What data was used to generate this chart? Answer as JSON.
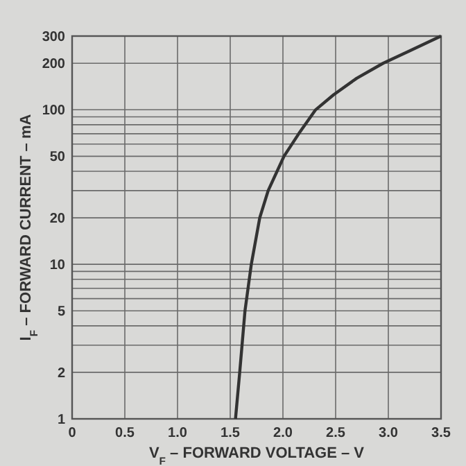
{
  "chart_data": {
    "type": "line",
    "xlabel": "V$_{F}$ – FORWARD VOLTAGE – V",
    "ylabel": "I$_{F}$ – FORWARD CURRENT – mA",
    "log": "y",
    "grid": true,
    "line_style": "solid",
    "series": [
      {
        "color": "#333333",
        "x": [
          1.55,
          1.59,
          1.64,
          1.7,
          1.78,
          1.86,
          2.01,
          2.15,
          2.31,
          2.48,
          2.7,
          2.95,
          3.2,
          3.5
        ],
        "values": [
          1,
          2,
          5,
          10,
          20,
          30,
          50,
          70,
          100,
          125,
          160,
          200,
          240,
          300
        ]
      }
    ],
    "xlim": [
      0,
      3.5
    ],
    "xticks": [
      0,
      0.5,
      {
        "value": 1,
        "label": "1.0"
      },
      1.5,
      {
        "value": 2,
        "label": "2.0"
      },
      2.5,
      {
        "value": 3,
        "label": "3.0"
      },
      3.5
    ],
    "ylim": [
      1,
      300
    ],
    "yticks": [
      1,
      2,
      {
        "value": 3,
        "label": null
      },
      {
        "value": 4,
        "label": null
      },
      5,
      {
        "value": 6,
        "label": null
      },
      {
        "value": 7,
        "label": null
      },
      {
        "value": 8,
        "label": null
      },
      {
        "value": 9,
        "label": null
      },
      10,
      20,
      {
        "value": 30,
        "label": null
      },
      {
        "value": 40,
        "label": null
      },
      50,
      {
        "value": 60,
        "label": null
      },
      {
        "value": 70,
        "label": null
      },
      {
        "value": 80,
        "label": null
      },
      {
        "value": 90,
        "label": null
      },
      100,
      200,
      300
    ]
  }
}
